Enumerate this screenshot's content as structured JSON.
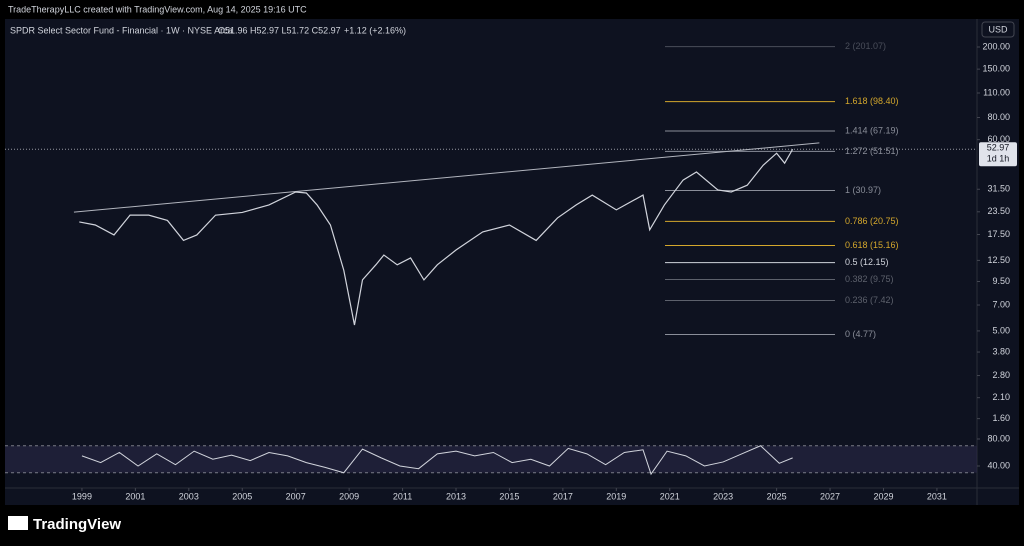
{
  "header": "TradeTherapyLLC created with TradingView.com, Aug 14, 2025 19:16 UTC",
  "brand": "TradingView",
  "chart_data": {
    "type": "line",
    "title": "SPDR Select Sector Fund - Financial · 1W · NYSE Arca",
    "ohlc": "O51.96 H52.97 L51.72 C52.97",
    "change": "+1.12 (+2.16%)",
    "currency": "USD",
    "log_scale": true,
    "xlim": [
      1996.12,
      2032.5
    ],
    "xticks": [
      1999,
      2001,
      2003,
      2005,
      2007,
      2009,
      2011,
      2013,
      2015,
      2017,
      2019,
      2021,
      2023,
      2025,
      2027,
      2029,
      2031
    ],
    "ylim": [
      1.38,
      284
    ],
    "yticks": [
      {
        "value": 200,
        "label": "200.00"
      },
      {
        "value": 150,
        "label": "150.00"
      },
      {
        "value": 110,
        "label": "110.00"
      },
      {
        "value": 80,
        "label": "80.00"
      },
      {
        "value": 60,
        "label": "60.00"
      },
      {
        "value": 31.5,
        "label": "31.50"
      },
      {
        "value": 23.5,
        "label": "23.50"
      },
      {
        "value": 17.5,
        "label": "17.50"
      },
      {
        "value": 12.5,
        "label": "12.50"
      },
      {
        "value": 9.5,
        "label": "9.50"
      },
      {
        "value": 7,
        "label": "7.00"
      },
      {
        "value": 5,
        "label": "5.00"
      },
      {
        "value": 3.8,
        "label": "3.80"
      },
      {
        "value": 2.8,
        "label": "2.80"
      },
      {
        "value": 2.1,
        "label": "2.10"
      },
      {
        "value": 1.6,
        "label": "1.60"
      }
    ],
    "x": [
      1998.9,
      1999.5,
      2000.2,
      2000.8,
      2001.5,
      2002.2,
      2002.8,
      2003.3,
      2004,
      2005,
      2006,
      2007,
      2007.4,
      2007.8,
      2008.3,
      2008.8,
      2009.2,
      2009.5,
      2010,
      2010.3,
      2010.8,
      2011.3,
      2011.8,
      2012.3,
      2013,
      2014,
      2015,
      2016,
      2016.8,
      2017.5,
      2018.1,
      2019,
      2020,
      2020.25,
      2020.8,
      2021.5,
      2022,
      2022.8,
      2023.3,
      2023.9,
      2024.5,
      2025,
      2025.3,
      2025.6
    ],
    "series": [
      {
        "color": "#d1d4dc",
        "values": [
          20.6,
          19.8,
          17.4,
          22.5,
          22.5,
          21,
          16.2,
          17.4,
          22.5,
          23.3,
          25.7,
          30.4,
          30,
          25.7,
          19.8,
          11,
          5.4,
          9.7,
          11.8,
          13.4,
          11.8,
          12.9,
          9.7,
          11.8,
          14.3,
          18.1,
          19.8,
          16.2,
          21.7,
          25.7,
          29.2,
          24.1,
          29.2,
          18.6,
          25.7,
          35.5,
          39.4,
          31.2,
          30.4,
          33.2,
          43.1,
          50.3,
          44.2,
          52.97
        ]
      }
    ],
    "trendline": {
      "x": [
        1998.7,
        2026.6
      ],
      "values": [
        23.4,
        57.5
      ],
      "color": "#b2b5be"
    },
    "last_price": {
      "value": 52.97,
      "label": "52.97",
      "countdown": "1d 1h"
    },
    "fib_levels": [
      {
        "value": 201.07,
        "label": "2 (201.07)",
        "color": "#4a4e5a"
      },
      {
        "value": 98.4,
        "label": "1.618 (98.40)",
        "color": "#d4a72c"
      },
      {
        "value": 67.19,
        "label": "1.414 (67.19)",
        "color": "#8a8e99"
      },
      {
        "value": 51.51,
        "label": "1.272 (51.51)",
        "color": "#8a8e99"
      },
      {
        "value": 30.97,
        "label": "1 (30.97)",
        "color": "#8a8e99"
      },
      {
        "value": 20.75,
        "label": "0.786 (20.75)",
        "color": "#d4a72c"
      },
      {
        "value": 15.16,
        "label": "0.618 (15.16)",
        "color": "#d4a72c"
      },
      {
        "value": 12.15,
        "label": "0.5 (12.15)",
        "color": "#d1d4dc"
      },
      {
        "value": 9.75,
        "label": "0.382 (9.75)",
        "color": "#5d616c"
      },
      {
        "value": 7.42,
        "label": "0.236 (7.42)",
        "color": "#5d616c"
      },
      {
        "value": 4.77,
        "label": "0 (4.77)",
        "color": "#8a8e99"
      }
    ],
    "rsi": {
      "color": "#d1d4dc",
      "band_color": "#2a2848",
      "ylim": [
        7.4,
        85.9
      ],
      "yticks": [
        {
          "value": 80,
          "label": "80.00"
        },
        {
          "value": 40,
          "label": "40.00"
        }
      ],
      "bands": [
        70,
        30
      ],
      "x": [
        1999,
        1999.7,
        2000.4,
        2001.1,
        2001.8,
        2002.5,
        2003.2,
        2003.9,
        2004.6,
        2005.3,
        2006,
        2006.7,
        2007.4,
        2008.1,
        2008.8,
        2009.5,
        2010.2,
        2010.9,
        2011.6,
        2012.3,
        2013,
        2013.7,
        2014.4,
        2015.1,
        2015.8,
        2016.5,
        2017.2,
        2017.9,
        2018.6,
        2019.3,
        2020,
        2020.3,
        2020.9,
        2021.6,
        2022.3,
        2023,
        2023.7,
        2024.4,
        2025.1,
        2025.6
      ],
      "values": [
        55,
        45,
        60,
        40,
        58,
        42,
        62,
        50,
        56,
        48,
        60,
        55,
        45,
        38,
        30,
        65,
        52,
        40,
        36,
        58,
        62,
        55,
        60,
        45,
        50,
        40,
        66,
        58,
        42,
        60,
        64,
        28,
        62,
        55,
        40,
        46,
        58,
        70,
        44,
        52
      ]
    }
  }
}
